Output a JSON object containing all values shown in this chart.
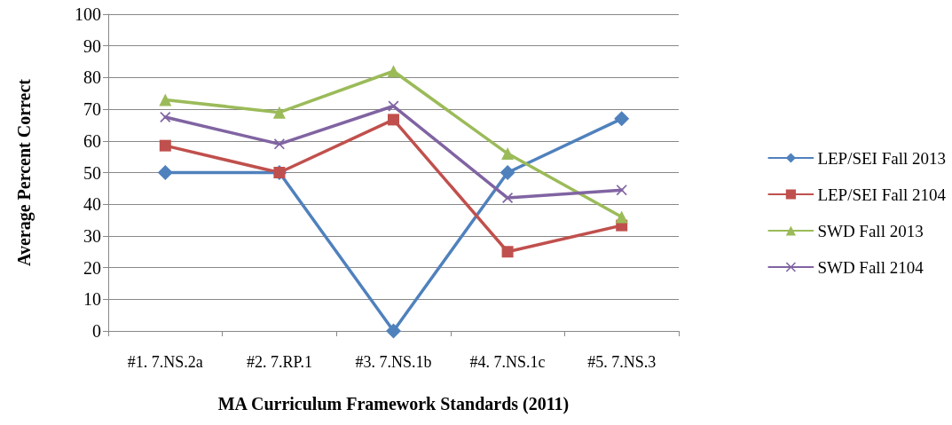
{
  "chart_data": {
    "type": "line",
    "xlabel": "MA Curriculum Framework Standards (2011)",
    "ylabel": "Average Percent Correct",
    "categories": [
      "#1. 7.NS.2a",
      "#2. 7.RP.1",
      "#3. 7.NS.1b",
      "#4. 7.NS.1c",
      "#5. 7.NS.3"
    ],
    "series": [
      {
        "name": "LEP/SEI Fall 2013",
        "color": "#4f81bd",
        "marker": "diamond",
        "values": [
          50,
          50,
          0,
          50,
          67
        ]
      },
      {
        "name": "LEP/SEI Fall 2104",
        "color": "#c0504d",
        "marker": "square",
        "values": [
          58.5,
          50,
          66.7,
          25,
          33.3
        ]
      },
      {
        "name": "SWD Fall 2013",
        "color": "#9bbb59",
        "marker": "triangle",
        "values": [
          73,
          69,
          82,
          56,
          36
        ]
      },
      {
        "name": "SWD Fall 2104",
        "color": "#8064a2",
        "marker": "cross",
        "values": [
          67.5,
          59,
          71,
          42,
          44.5
        ]
      }
    ],
    "ylim": [
      0,
      100
    ],
    "yticks": [
      0,
      10,
      20,
      30,
      40,
      50,
      60,
      70,
      80,
      90,
      100
    ],
    "grid": "y",
    "legend": "right",
    "line_style": "solid"
  }
}
